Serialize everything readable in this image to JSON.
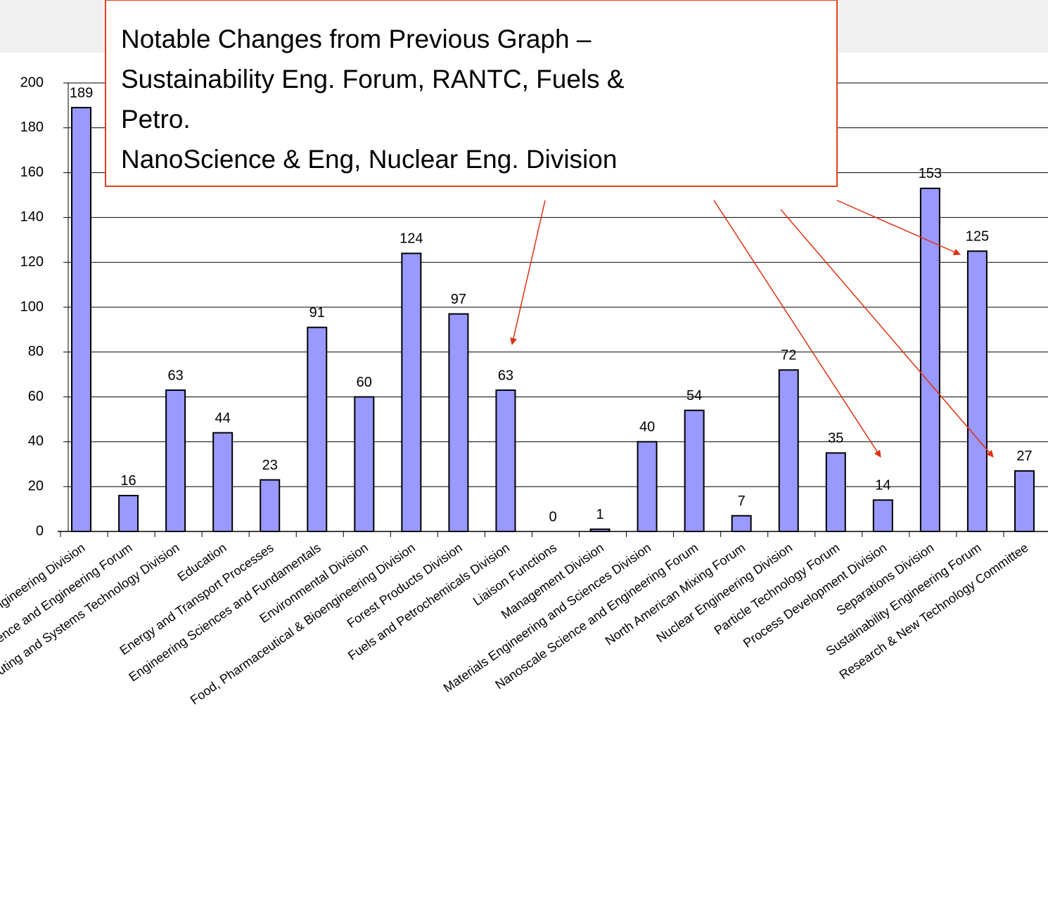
{
  "chart_data": {
    "type": "bar",
    "categories": [
      "Catalysis and Reaction Engineering Division",
      "Computational Molecular Science and Engineering Forum",
      "Computing and Systems Technology Division",
      "Education",
      "Energy and Transport Processes",
      "Engineering Sciences and Fundamentals",
      "Environmental Division",
      "Food, Pharmaceutical & Bioengineering Division",
      "Forest Products Division",
      "Fuels and Petrochemicals Division",
      "Liaison Functions",
      "Management Division",
      "Materials Engineering and Sciences Division",
      "Nanoscale Science and Engineering Forum",
      "North American Mixing Forum",
      "Nuclear Engineering Division",
      "Particle Technology Forum",
      "Process Development Division",
      "Separations Division",
      "Sustainability Engineering Forum",
      "Research & New Technology Committee"
    ],
    "values": [
      189,
      16,
      63,
      44,
      23,
      91,
      60,
      124,
      97,
      63,
      0,
      1,
      40,
      54,
      7,
      72,
      35,
      14,
      153,
      125,
      27
    ],
    "color": "#9999ff",
    "ylim": [
      0,
      200
    ],
    "yticks": [
      0,
      20,
      40,
      60,
      80,
      100,
      120,
      140,
      160,
      180,
      200
    ],
    "grid": true,
    "annotation": [
      "Notable Changes from Previous Graph –",
      "Sustainability Eng. Forum, RANTC, Fuels &",
      "Petro.",
      "NanoScience & Eng, Nuclear Eng. Division"
    ]
  }
}
